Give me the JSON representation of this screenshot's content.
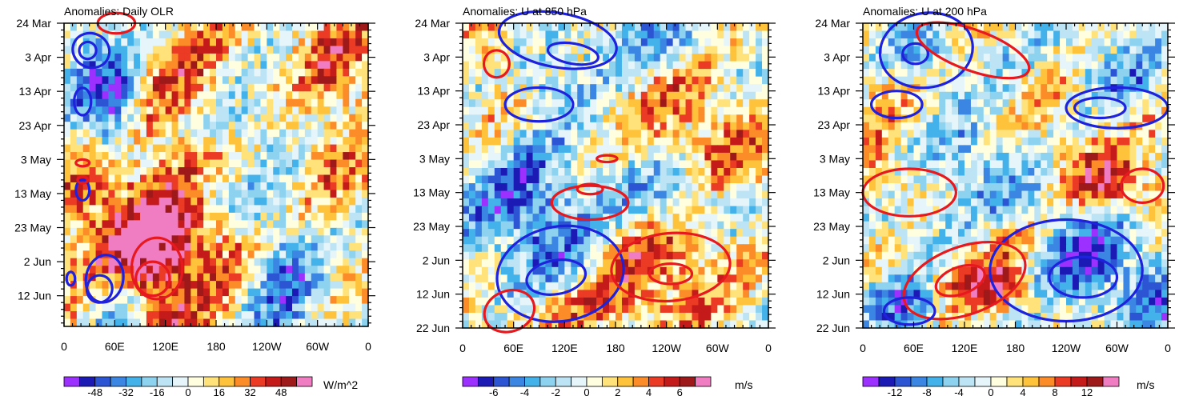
{
  "figure": {
    "domain": "Hovmoller anomaly panels"
  },
  "chart_data": [
    {
      "type": "heatmap",
      "title": "Anomalies: Daily OLR",
      "x_ticks": [
        "0",
        "60E",
        "120E",
        "180",
        "120W",
        "60W",
        "0"
      ],
      "x_values": [
        0,
        60,
        120,
        180,
        240,
        300,
        360
      ],
      "y_ticks": [
        "24 Mar",
        "3 Apr",
        "13 Apr",
        "23 Apr",
        "3 May",
        "13 May",
        "23 May",
        "2 Jun",
        "12 Jun"
      ],
      "y_days": [
        0,
        10,
        20,
        30,
        40,
        50,
        60,
        70,
        80
      ],
      "ylim_days": [
        0,
        89
      ],
      "xlim": [
        0,
        360
      ],
      "colorbar": {
        "ticks": [
          "-48",
          "-32",
          "-16",
          "0",
          "16",
          "32",
          "48"
        ],
        "unit": "W/m^2",
        "min": -60,
        "max": 60
      },
      "colors": [
        "#9b30ff",
        "#1c1ab5",
        "#2c55d4",
        "#3b86e3",
        "#43b2ea",
        "#8dd3f0",
        "#bde4f4",
        "#e6f5fa",
        "#ffffe0",
        "#ffe27a",
        "#ffc33b",
        "#fb8c28",
        "#eb3b24",
        "#c51a1a",
        "#9e1919",
        "#f07cc2"
      ],
      "contours": {
        "positive_color": "#e8191e",
        "negative_color": "#1f22dc"
      }
    },
    {
      "type": "heatmap",
      "title": "Anomalies: U at 850 hPa",
      "x_ticks": [
        "0",
        "60E",
        "120E",
        "180",
        "120W",
        "60W",
        "0"
      ],
      "x_values": [
        0,
        60,
        120,
        180,
        240,
        300,
        360
      ],
      "y_ticks": [
        "24 Mar",
        "3 Apr",
        "13 Apr",
        "23 Apr",
        "3 May",
        "13 May",
        "23 May",
        "2 Jun",
        "12 Jun",
        "22 Jun"
      ],
      "y_days": [
        0,
        10,
        20,
        30,
        40,
        50,
        60,
        70,
        80,
        90
      ],
      "ylim_days": [
        0,
        90
      ],
      "xlim": [
        0,
        360
      ],
      "colorbar": {
        "ticks": [
          "-6",
          "-4",
          "-2",
          "0",
          "2",
          "4",
          "6"
        ],
        "unit": "m/s",
        "min": -7.5,
        "max": 7.5
      },
      "colors": [
        "#9b30ff",
        "#1c1ab5",
        "#2c55d4",
        "#3b86e3",
        "#43b2ea",
        "#8dd3f0",
        "#bde4f4",
        "#e6f5fa",
        "#ffffe0",
        "#ffe27a",
        "#ffc33b",
        "#fb8c28",
        "#eb3b24",
        "#c51a1a",
        "#9e1919",
        "#f07cc2"
      ],
      "contours": {
        "positive_color": "#e8191e",
        "negative_color": "#1f22dc"
      }
    },
    {
      "type": "heatmap",
      "title": "Anomalies: U at 200 hPa",
      "x_ticks": [
        "0",
        "60E",
        "120E",
        "180",
        "120W",
        "60W",
        "0"
      ],
      "x_values": [
        0,
        60,
        120,
        180,
        240,
        300,
        360
      ],
      "y_ticks": [
        "24 Mar",
        "3 Apr",
        "13 Apr",
        "23 Apr",
        "3 May",
        "13 May",
        "23 May",
        "2 Jun",
        "12 Jun",
        "22 Jun"
      ],
      "y_days": [
        0,
        10,
        20,
        30,
        40,
        50,
        60,
        70,
        80,
        90
      ],
      "ylim_days": [
        0,
        90
      ],
      "xlim": [
        0,
        360
      ],
      "colorbar": {
        "ticks": [
          "-12",
          "-8",
          "-4",
          "0",
          "4",
          "8",
          "12"
        ],
        "unit": "m/s",
        "min": -15,
        "max": 15
      },
      "colors": [
        "#9b30ff",
        "#1c1ab5",
        "#2c55d4",
        "#3b86e3",
        "#43b2ea",
        "#8dd3f0",
        "#bde4f4",
        "#e6f5fa",
        "#ffffe0",
        "#ffe27a",
        "#ffc33b",
        "#fb8c28",
        "#eb3b24",
        "#c51a1a",
        "#9e1919",
        "#f07cc2"
      ],
      "contours": {
        "positive_color": "#e8191e",
        "negative_color": "#1f22dc"
      }
    }
  ]
}
